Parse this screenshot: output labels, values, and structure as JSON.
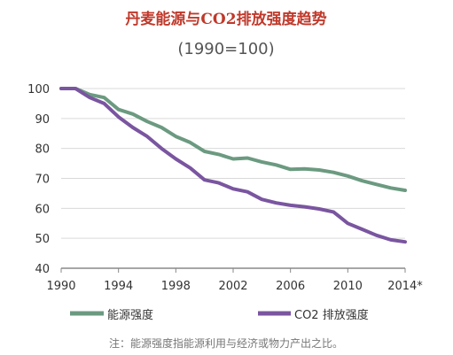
{
  "chart_data": {
    "type": "line",
    "title": "丹麦能源与CO2排放强度趋势",
    "subtitle": "(1990=100)",
    "xlabel": "",
    "ylabel": "",
    "x_ticks": [
      "1990",
      "1994",
      "1998",
      "2002",
      "2006",
      "2010",
      "2014*"
    ],
    "xlim": [
      1990,
      2014
    ],
    "ylim": [
      40,
      100
    ],
    "y_ticks": [
      40,
      50,
      60,
      70,
      80,
      90,
      100
    ],
    "grid": true,
    "legend_position": "bottom",
    "x": [
      1990,
      1991,
      1992,
      1993,
      1994,
      1995,
      1996,
      1997,
      1998,
      1999,
      2000,
      2001,
      2002,
      2003,
      2004,
      2005,
      2006,
      2007,
      2008,
      2009,
      2010,
      2011,
      2012,
      2013,
      2014
    ],
    "series": [
      {
        "name": "能源强度",
        "color": "#6b9a80",
        "values": [
          100,
          100,
          98,
          97,
          93,
          91.5,
          89,
          87,
          84,
          82,
          79,
          78,
          76.5,
          76.8,
          75.5,
          74.5,
          73,
          73.2,
          72.8,
          72,
          70.8,
          69.2,
          68,
          66.8,
          66
        ]
      },
      {
        "name": "CO2 排放强度",
        "color": "#7a55a0",
        "values": [
          100,
          100,
          97,
          95,
          90.5,
          87,
          84,
          80,
          76.5,
          73.5,
          69.5,
          68.5,
          66.5,
          65.5,
          63,
          61.8,
          61,
          60.5,
          59.8,
          58.8,
          55,
          53,
          51,
          49.5,
          48.8
        ]
      }
    ],
    "note": "注：能源强度指能源利用与经济或物力产出之比。"
  }
}
